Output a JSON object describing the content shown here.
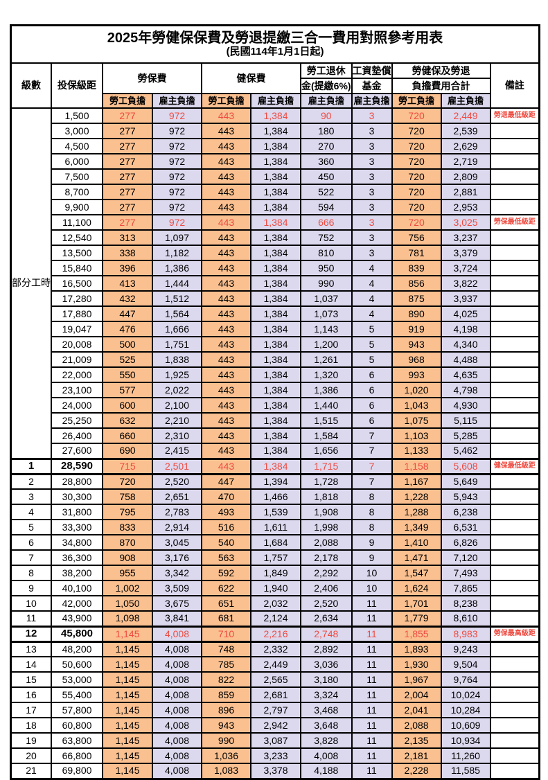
{
  "title": "2025年勞健保保費及勞退提繳三合一費用對照參考用表",
  "subtitle": "(民國114年1月1日起)",
  "header": {
    "level": "級數",
    "bracket": "投保級距",
    "labor_insurance": "勞保費",
    "health_insurance": "健保費",
    "pension_line1": "勞工退休",
    "pension_line2": "金(提繳6%)",
    "wage_fund_line1": "工資墊償",
    "wage_fund_line2": "基金",
    "total_line1": "勞健保及勞退",
    "total_line2": "負擔費用合計",
    "note": "備註",
    "employee_label": "勞工負擔",
    "employer_label": "雇主負擔"
  },
  "part_time_label": "部分工時",
  "colors": {
    "employee_bg": "#fac090",
    "employer_bg": "#dcd8ee",
    "highlight_text": "#ee4b41"
  },
  "rows": [
    {
      "level": "",
      "bracket": "1,500",
      "li_emp": "277",
      "li_er": "972",
      "hi_emp": "443",
      "hi_er": "1,384",
      "pension": "90",
      "fund": "3",
      "tot_emp": "720",
      "tot_er": "2,449",
      "note": "勞退最低級距"
    },
    {
      "level": "",
      "bracket": "3,000",
      "li_emp": "277",
      "li_er": "972",
      "hi_emp": "443",
      "hi_er": "1,384",
      "pension": "180",
      "fund": "3",
      "tot_emp": "720",
      "tot_er": "2,539",
      "note": ""
    },
    {
      "level": "",
      "bracket": "4,500",
      "li_emp": "277",
      "li_er": "972",
      "hi_emp": "443",
      "hi_er": "1,384",
      "pension": "270",
      "fund": "3",
      "tot_emp": "720",
      "tot_er": "2,629",
      "note": ""
    },
    {
      "level": "",
      "bracket": "6,000",
      "li_emp": "277",
      "li_er": "972",
      "hi_emp": "443",
      "hi_er": "1,384",
      "pension": "360",
      "fund": "3",
      "tot_emp": "720",
      "tot_er": "2,719",
      "note": ""
    },
    {
      "level": "",
      "bracket": "7,500",
      "li_emp": "277",
      "li_er": "972",
      "hi_emp": "443",
      "hi_er": "1,384",
      "pension": "450",
      "fund": "3",
      "tot_emp": "720",
      "tot_er": "2,809",
      "note": ""
    },
    {
      "level": "",
      "bracket": "8,700",
      "li_emp": "277",
      "li_er": "972",
      "hi_emp": "443",
      "hi_er": "1,384",
      "pension": "522",
      "fund": "3",
      "tot_emp": "720",
      "tot_er": "2,881",
      "note": ""
    },
    {
      "level": "",
      "bracket": "9,900",
      "li_emp": "277",
      "li_er": "972",
      "hi_emp": "443",
      "hi_er": "1,384",
      "pension": "594",
      "fund": "3",
      "tot_emp": "720",
      "tot_er": "2,953",
      "note": ""
    },
    {
      "level": "",
      "bracket": "11,100",
      "li_emp": "277",
      "li_er": "972",
      "hi_emp": "443",
      "hi_er": "1,384",
      "pension": "666",
      "fund": "3",
      "tot_emp": "720",
      "tot_er": "3,025",
      "note": "勞保最低級距"
    },
    {
      "level": "",
      "bracket": "12,540",
      "li_emp": "313",
      "li_er": "1,097",
      "hi_emp": "443",
      "hi_er": "1,384",
      "pension": "752",
      "fund": "3",
      "tot_emp": "756",
      "tot_er": "3,237",
      "note": ""
    },
    {
      "level": "",
      "bracket": "13,500",
      "li_emp": "338",
      "li_er": "1,182",
      "hi_emp": "443",
      "hi_er": "1,384",
      "pension": "810",
      "fund": "3",
      "tot_emp": "781",
      "tot_er": "3,379",
      "note": ""
    },
    {
      "level": "",
      "bracket": "15,840",
      "li_emp": "396",
      "li_er": "1,386",
      "hi_emp": "443",
      "hi_er": "1,384",
      "pension": "950",
      "fund": "4",
      "tot_emp": "839",
      "tot_er": "3,724",
      "note": ""
    },
    {
      "level": "",
      "bracket": "16,500",
      "li_emp": "413",
      "li_er": "1,444",
      "hi_emp": "443",
      "hi_er": "1,384",
      "pension": "990",
      "fund": "4",
      "tot_emp": "856",
      "tot_er": "3,822",
      "note": ""
    },
    {
      "level": "",
      "bracket": "17,280",
      "li_emp": "432",
      "li_er": "1,512",
      "hi_emp": "443",
      "hi_er": "1,384",
      "pension": "1,037",
      "fund": "4",
      "tot_emp": "875",
      "tot_er": "3,937",
      "note": ""
    },
    {
      "level": "",
      "bracket": "17,880",
      "li_emp": "447",
      "li_er": "1,564",
      "hi_emp": "443",
      "hi_er": "1,384",
      "pension": "1,073",
      "fund": "4",
      "tot_emp": "890",
      "tot_er": "4,025",
      "note": ""
    },
    {
      "level": "",
      "bracket": "19,047",
      "li_emp": "476",
      "li_er": "1,666",
      "hi_emp": "443",
      "hi_er": "1,384",
      "pension": "1,143",
      "fund": "5",
      "tot_emp": "919",
      "tot_er": "4,198",
      "note": ""
    },
    {
      "level": "",
      "bracket": "20,008",
      "li_emp": "500",
      "li_er": "1,751",
      "hi_emp": "443",
      "hi_er": "1,384",
      "pension": "1,200",
      "fund": "5",
      "tot_emp": "943",
      "tot_er": "4,340",
      "note": ""
    },
    {
      "level": "",
      "bracket": "21,009",
      "li_emp": "525",
      "li_er": "1,838",
      "hi_emp": "443",
      "hi_er": "1,384",
      "pension": "1,261",
      "fund": "5",
      "tot_emp": "968",
      "tot_er": "4,488",
      "note": ""
    },
    {
      "level": "",
      "bracket": "22,000",
      "li_emp": "550",
      "li_er": "1,925",
      "hi_emp": "443",
      "hi_er": "1,384",
      "pension": "1,320",
      "fund": "6",
      "tot_emp": "993",
      "tot_er": "4,635",
      "note": ""
    },
    {
      "level": "",
      "bracket": "23,100",
      "li_emp": "577",
      "li_er": "2,022",
      "hi_emp": "443",
      "hi_er": "1,384",
      "pension": "1,386",
      "fund": "6",
      "tot_emp": "1,020",
      "tot_er": "4,798",
      "note": ""
    },
    {
      "level": "",
      "bracket": "24,000",
      "li_emp": "600",
      "li_er": "2,100",
      "hi_emp": "443",
      "hi_er": "1,384",
      "pension": "1,440",
      "fund": "6",
      "tot_emp": "1,043",
      "tot_er": "4,930",
      "note": ""
    },
    {
      "level": "",
      "bracket": "25,250",
      "li_emp": "632",
      "li_er": "2,210",
      "hi_emp": "443",
      "hi_er": "1,384",
      "pension": "1,515",
      "fund": "6",
      "tot_emp": "1,075",
      "tot_er": "5,115",
      "note": ""
    },
    {
      "level": "",
      "bracket": "26,400",
      "li_emp": "660",
      "li_er": "2,310",
      "hi_emp": "443",
      "hi_er": "1,384",
      "pension": "1,584",
      "fund": "7",
      "tot_emp": "1,103",
      "tot_er": "5,285",
      "note": ""
    },
    {
      "level": "",
      "bracket": "27,600",
      "li_emp": "690",
      "li_er": "2,415",
      "hi_emp": "443",
      "hi_er": "1,384",
      "pension": "1,656",
      "fund": "7",
      "tot_emp": "1,133",
      "tot_er": "5,462",
      "note": ""
    },
    {
      "level": "1",
      "bracket": "28,590",
      "li_emp": "715",
      "li_er": "2,501",
      "hi_emp": "443",
      "hi_er": "1,384",
      "pension": "1,715",
      "fund": "7",
      "tot_emp": "1,158",
      "tot_er": "5,608",
      "note": "健保最低級距"
    },
    {
      "level": "2",
      "bracket": "28,800",
      "li_emp": "720",
      "li_er": "2,520",
      "hi_emp": "447",
      "hi_er": "1,394",
      "pension": "1,728",
      "fund": "7",
      "tot_emp": "1,167",
      "tot_er": "5,649",
      "note": ""
    },
    {
      "level": "3",
      "bracket": "30,300",
      "li_emp": "758",
      "li_er": "2,651",
      "hi_emp": "470",
      "hi_er": "1,466",
      "pension": "1,818",
      "fund": "8",
      "tot_emp": "1,228",
      "tot_er": "5,943",
      "note": ""
    },
    {
      "level": "4",
      "bracket": "31,800",
      "li_emp": "795",
      "li_er": "2,783",
      "hi_emp": "493",
      "hi_er": "1,539",
      "pension": "1,908",
      "fund": "8",
      "tot_emp": "1,288",
      "tot_er": "6,238",
      "note": ""
    },
    {
      "level": "5",
      "bracket": "33,300",
      "li_emp": "833",
      "li_er": "2,914",
      "hi_emp": "516",
      "hi_er": "1,611",
      "pension": "1,998",
      "fund": "8",
      "tot_emp": "1,349",
      "tot_er": "6,531",
      "note": ""
    },
    {
      "level": "6",
      "bracket": "34,800",
      "li_emp": "870",
      "li_er": "3,045",
      "hi_emp": "540",
      "hi_er": "1,684",
      "pension": "2,088",
      "fund": "9",
      "tot_emp": "1,410",
      "tot_er": "6,826",
      "note": ""
    },
    {
      "level": "7",
      "bracket": "36,300",
      "li_emp": "908",
      "li_er": "3,176",
      "hi_emp": "563",
      "hi_er": "1,757",
      "pension": "2,178",
      "fund": "9",
      "tot_emp": "1,471",
      "tot_er": "7,120",
      "note": ""
    },
    {
      "level": "8",
      "bracket": "38,200",
      "li_emp": "955",
      "li_er": "3,342",
      "hi_emp": "592",
      "hi_er": "1,849",
      "pension": "2,292",
      "fund": "10",
      "tot_emp": "1,547",
      "tot_er": "7,493",
      "note": ""
    },
    {
      "level": "9",
      "bracket": "40,100",
      "li_emp": "1,002",
      "li_er": "3,509",
      "hi_emp": "622",
      "hi_er": "1,940",
      "pension": "2,406",
      "fund": "10",
      "tot_emp": "1,624",
      "tot_er": "7,865",
      "note": ""
    },
    {
      "level": "10",
      "bracket": "42,000",
      "li_emp": "1,050",
      "li_er": "3,675",
      "hi_emp": "651",
      "hi_er": "2,032",
      "pension": "2,520",
      "fund": "11",
      "tot_emp": "1,701",
      "tot_er": "8,238",
      "note": ""
    },
    {
      "level": "11",
      "bracket": "43,900",
      "li_emp": "1,098",
      "li_er": "3,841",
      "hi_emp": "681",
      "hi_er": "2,124",
      "pension": "2,634",
      "fund": "11",
      "tot_emp": "1,779",
      "tot_er": "8,610",
      "note": ""
    },
    {
      "level": "12",
      "bracket": "45,800",
      "li_emp": "1,145",
      "li_er": "4,008",
      "hi_emp": "710",
      "hi_er": "2,216",
      "pension": "2,748",
      "fund": "11",
      "tot_emp": "1,855",
      "tot_er": "8,983",
      "note": "勞保最高級距"
    },
    {
      "level": "13",
      "bracket": "48,200",
      "li_emp": "1,145",
      "li_er": "4,008",
      "hi_emp": "748",
      "hi_er": "2,332",
      "pension": "2,892",
      "fund": "11",
      "tot_emp": "1,893",
      "tot_er": "9,243",
      "note": ""
    },
    {
      "level": "14",
      "bracket": "50,600",
      "li_emp": "1,145",
      "li_er": "4,008",
      "hi_emp": "785",
      "hi_er": "2,449",
      "pension": "3,036",
      "fund": "11",
      "tot_emp": "1,930",
      "tot_er": "9,504",
      "note": ""
    },
    {
      "level": "15",
      "bracket": "53,000",
      "li_emp": "1,145",
      "li_er": "4,008",
      "hi_emp": "822",
      "hi_er": "2,565",
      "pension": "3,180",
      "fund": "11",
      "tot_emp": "1,967",
      "tot_er": "9,764",
      "note": ""
    },
    {
      "level": "16",
      "bracket": "55,400",
      "li_emp": "1,145",
      "li_er": "4,008",
      "hi_emp": "859",
      "hi_er": "2,681",
      "pension": "3,324",
      "fund": "11",
      "tot_emp": "2,004",
      "tot_er": "10,024",
      "note": ""
    },
    {
      "level": "17",
      "bracket": "57,800",
      "li_emp": "1,145",
      "li_er": "4,008",
      "hi_emp": "896",
      "hi_er": "2,797",
      "pension": "3,468",
      "fund": "11",
      "tot_emp": "2,041",
      "tot_er": "10,284",
      "note": ""
    },
    {
      "level": "18",
      "bracket": "60,800",
      "li_emp": "1,145",
      "li_er": "4,008",
      "hi_emp": "943",
      "hi_er": "2,942",
      "pension": "3,648",
      "fund": "11",
      "tot_emp": "2,088",
      "tot_er": "10,609",
      "note": ""
    },
    {
      "level": "19",
      "bracket": "63,800",
      "li_emp": "1,145",
      "li_er": "4,008",
      "hi_emp": "990",
      "hi_er": "3,087",
      "pension": "3,828",
      "fund": "11",
      "tot_emp": "2,135",
      "tot_er": "10,934",
      "note": ""
    },
    {
      "level": "20",
      "bracket": "66,800",
      "li_emp": "1,145",
      "li_er": "4,008",
      "hi_emp": "1,036",
      "hi_er": "3,233",
      "pension": "4,008",
      "fund": "11",
      "tot_emp": "2,181",
      "tot_er": "11,260",
      "note": ""
    },
    {
      "level": "21",
      "bracket": "69,800",
      "li_emp": "1,145",
      "li_er": "4,008",
      "hi_emp": "1,083",
      "hi_er": "3,378",
      "pension": "4,188",
      "fund": "11",
      "tot_emp": "2,228",
      "tot_er": "11,585",
      "note": ""
    }
  ]
}
